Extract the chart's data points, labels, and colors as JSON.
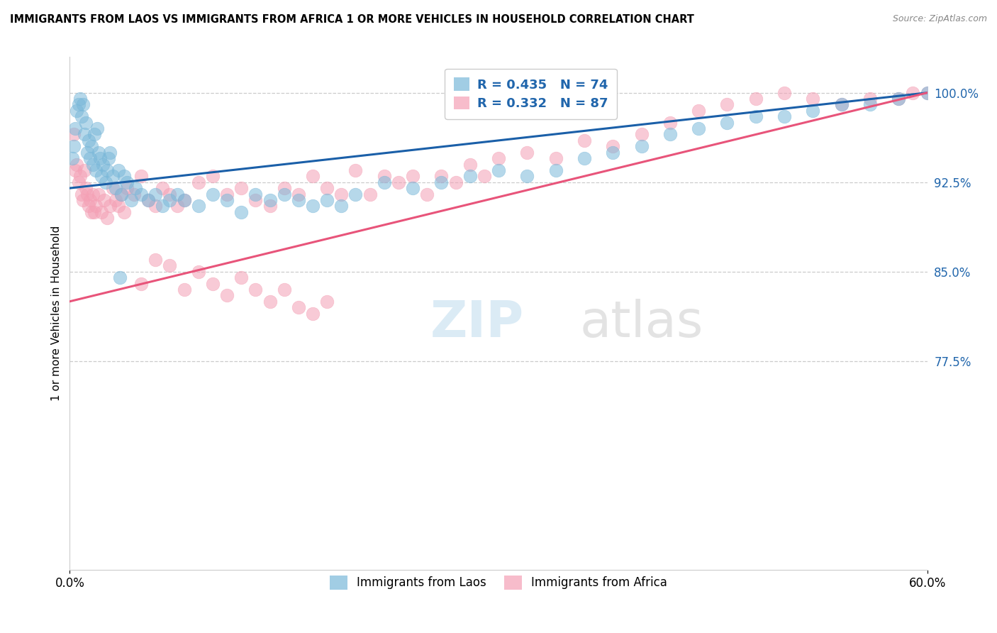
{
  "title": "IMMIGRANTS FROM LAOS VS IMMIGRANTS FROM AFRICA 1 OR MORE VEHICLES IN HOUSEHOLD CORRELATION CHART",
  "source": "Source: ZipAtlas.com",
  "ylabel_label": "1 or more Vehicles in Household",
  "xmin": 0.0,
  "xmax": 60.0,
  "ymin": 60.0,
  "ymax": 103.0,
  "yticks": [
    100.0,
    92.5,
    85.0,
    77.5
  ],
  "ytick_labels": [
    "100.0%",
    "92.5%",
    "85.0%",
    "77.5%"
  ],
  "xtick_vals": [
    0.0,
    60.0
  ],
  "xtick_labels": [
    "0.0%",
    "60.0%"
  ],
  "legend_series1": "Immigrants from Laos",
  "legend_series2": "Immigrants from Africa",
  "blue_color": "#7ab8d9",
  "pink_color": "#f4a0b5",
  "blue_line_color": "#1a5fa8",
  "pink_line_color": "#e8547a",
  "R_laos": 0.435,
  "N_laos": 74,
  "R_africa": 0.332,
  "N_africa": 87,
  "blue_line_x0": 0.0,
  "blue_line_y0": 92.0,
  "blue_line_x1": 60.0,
  "blue_line_y1": 100.0,
  "pink_line_x0": 0.0,
  "pink_line_y0": 82.5,
  "pink_line_x1": 60.0,
  "pink_line_y1": 100.0,
  "laos_x": [
    0.2,
    0.3,
    0.4,
    0.5,
    0.6,
    0.7,
    0.8,
    0.9,
    1.0,
    1.1,
    1.2,
    1.3,
    1.4,
    1.5,
    1.6,
    1.7,
    1.8,
    1.9,
    2.0,
    2.1,
    2.2,
    2.3,
    2.5,
    2.6,
    2.7,
    2.8,
    3.0,
    3.2,
    3.4,
    3.6,
    3.8,
    4.0,
    4.3,
    4.6,
    5.0,
    5.5,
    6.0,
    6.5,
    7.0,
    7.5,
    8.0,
    9.0,
    10.0,
    11.0,
    12.0,
    13.0,
    14.0,
    15.0,
    16.0,
    17.0,
    18.0,
    19.0,
    20.0,
    22.0,
    24.0,
    26.0,
    28.0,
    30.0,
    32.0,
    34.0,
    36.0,
    38.0,
    40.0,
    42.0,
    44.0,
    46.0,
    48.0,
    50.0,
    52.0,
    54.0,
    56.0,
    58.0,
    60.0,
    3.5
  ],
  "laos_y": [
    94.5,
    95.5,
    97.0,
    98.5,
    99.0,
    99.5,
    98.0,
    99.0,
    96.5,
    97.5,
    95.0,
    96.0,
    94.5,
    95.5,
    94.0,
    96.5,
    93.5,
    97.0,
    95.0,
    94.5,
    93.0,
    94.0,
    92.5,
    93.5,
    94.5,
    95.0,
    93.0,
    92.0,
    93.5,
    91.5,
    93.0,
    92.5,
    91.0,
    92.0,
    91.5,
    91.0,
    91.5,
    90.5,
    91.0,
    91.5,
    91.0,
    90.5,
    91.5,
    91.0,
    90.0,
    91.5,
    91.0,
    91.5,
    91.0,
    90.5,
    91.0,
    90.5,
    91.5,
    92.5,
    92.0,
    92.5,
    93.0,
    93.5,
    93.0,
    93.5,
    94.5,
    95.0,
    95.5,
    96.5,
    97.0,
    97.5,
    98.0,
    98.0,
    98.5,
    99.0,
    99.0,
    99.5,
    100.0,
    84.5
  ],
  "africa_x": [
    0.3,
    0.4,
    0.5,
    0.6,
    0.7,
    0.8,
    0.9,
    1.0,
    1.1,
    1.2,
    1.3,
    1.4,
    1.5,
    1.6,
    1.7,
    1.8,
    2.0,
    2.2,
    2.4,
    2.6,
    2.8,
    3.0,
    3.2,
    3.4,
    3.6,
    3.8,
    4.0,
    4.5,
    5.0,
    5.5,
    6.0,
    6.5,
    7.0,
    7.5,
    8.0,
    9.0,
    10.0,
    11.0,
    12.0,
    13.0,
    14.0,
    15.0,
    16.0,
    17.0,
    18.0,
    19.0,
    20.0,
    21.0,
    22.0,
    23.0,
    24.0,
    25.0,
    26.0,
    27.0,
    28.0,
    29.0,
    30.0,
    32.0,
    34.0,
    36.0,
    38.0,
    40.0,
    42.0,
    44.0,
    46.0,
    48.0,
    50.0,
    52.0,
    54.0,
    56.0,
    58.0,
    59.0,
    60.0,
    5.0,
    6.0,
    7.0,
    8.0,
    9.0,
    10.0,
    11.0,
    12.0,
    13.0,
    14.0,
    15.0,
    16.0,
    17.0,
    18.0
  ],
  "africa_y": [
    96.5,
    93.5,
    94.0,
    92.5,
    93.0,
    91.5,
    91.0,
    93.5,
    92.0,
    91.5,
    90.5,
    91.0,
    90.0,
    91.5,
    90.0,
    90.5,
    91.5,
    90.0,
    91.0,
    89.5,
    90.5,
    92.0,
    91.0,
    90.5,
    91.5,
    90.0,
    92.0,
    91.5,
    93.0,
    91.0,
    90.5,
    92.0,
    91.5,
    90.5,
    91.0,
    92.5,
    93.0,
    91.5,
    92.0,
    91.0,
    90.5,
    92.0,
    91.5,
    93.0,
    92.0,
    91.5,
    93.5,
    91.5,
    93.0,
    92.5,
    93.0,
    91.5,
    93.0,
    92.5,
    94.0,
    93.0,
    94.5,
    95.0,
    94.5,
    96.0,
    95.5,
    96.5,
    97.5,
    98.5,
    99.0,
    99.5,
    100.0,
    99.5,
    99.0,
    99.5,
    99.5,
    100.0,
    100.0,
    84.0,
    86.0,
    85.5,
    83.5,
    85.0,
    84.0,
    83.0,
    84.5,
    83.5,
    82.5,
    83.5,
    82.0,
    81.5,
    82.5
  ]
}
